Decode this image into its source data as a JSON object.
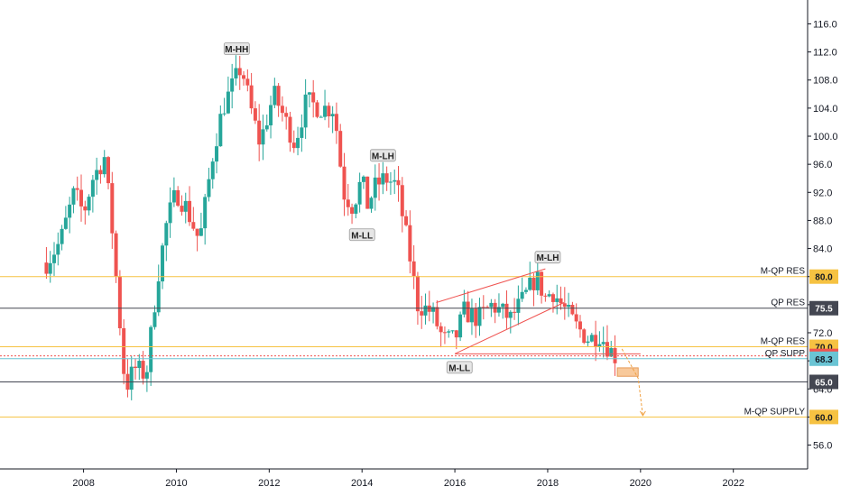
{
  "chart_data": {
    "type": "candlestick",
    "title": "",
    "xlabel": "",
    "ylabel": "",
    "x_range": [
      2006.2,
      2023.6
    ],
    "ylim": [
      52.6,
      119.4
    ],
    "x_ticks": [
      "2008",
      "2010",
      "2012",
      "2014",
      "2016",
      "2018",
      "2020",
      "2022"
    ],
    "y_ticks": [
      "56.0",
      "60.0",
      "64.0",
      "68.0",
      "72.0",
      "76.0",
      "80.0",
      "84.0",
      "88.0",
      "92.0",
      "96.0",
      "100.0",
      "104.0",
      "108.0",
      "112.0",
      "116.0"
    ],
    "grid": false,
    "up_color": "#26a69a",
    "down_color": "#ef5350",
    "path_points": [
      [
        2007.2,
        82
      ],
      [
        2007.5,
        85
      ],
      [
        2007.8,
        92
      ],
      [
        2008.0,
        89
      ],
      [
        2008.2,
        94
      ],
      [
        2008.45,
        97
      ],
      [
        2008.6,
        88
      ],
      [
        2008.75,
        76
      ],
      [
        2008.9,
        64
      ],
      [
        2009.1,
        67
      ],
      [
        2009.35,
        66
      ],
      [
        2009.6,
        80
      ],
      [
        2009.8,
        88
      ],
      [
        2010.0,
        92
      ],
      [
        2010.2,
        90
      ],
      [
        2010.5,
        85
      ],
      [
        2010.8,
        98
      ],
      [
        2011.0,
        104
      ],
      [
        2011.2,
        107
      ],
      [
        2011.4,
        110
      ],
      [
        2011.6,
        104
      ],
      [
        2011.8,
        99
      ],
      [
        2012.1,
        106
      ],
      [
        2012.3,
        103
      ],
      [
        2012.55,
        99
      ],
      [
        2012.8,
        105
      ],
      [
        2013.1,
        104
      ],
      [
        2013.4,
        104
      ],
      [
        2013.6,
        92
      ],
      [
        2013.8,
        90
      ],
      [
        2014.0,
        94
      ],
      [
        2014.1,
        90
      ],
      [
        2014.3,
        93
      ],
      [
        2014.5,
        94
      ],
      [
        2014.75,
        93
      ],
      [
        2015.0,
        84
      ],
      [
        2015.2,
        76
      ],
      [
        2015.5,
        75
      ],
      [
        2015.75,
        71
      ],
      [
        2016.0,
        71
      ],
      [
        2016.2,
        75
      ],
      [
        2016.5,
        74
      ],
      [
        2016.8,
        76
      ],
      [
        2017.2,
        74
      ],
      [
        2017.5,
        77
      ],
      [
        2017.75,
        80
      ],
      [
        2017.95,
        77
      ],
      [
        2018.1,
        78
      ],
      [
        2018.3,
        76
      ],
      [
        2018.6,
        73
      ],
      [
        2018.9,
        71
      ],
      [
        2019.1,
        72
      ],
      [
        2019.35,
        69.5
      ],
      [
        2019.45,
        68.7
      ]
    ],
    "horizontal_levels": [
      {
        "label": "M-QP RES",
        "value": "80.0",
        "color": "#f6c242"
      },
      {
        "label": "QP RES",
        "value": "75.5",
        "color": "#434651"
      },
      {
        "label": "M-QP RES",
        "value": "70.0",
        "color": "#f6c242"
      },
      {
        "label": "",
        "value": "68.7",
        "color": "#ef5350"
      },
      {
        "label": "QP SUPP",
        "value": "68.3",
        "color": "#6ac4d4"
      },
      {
        "label": "",
        "value": "65.0",
        "color": "#434651"
      },
      {
        "label": "M-QP  SUPPLY",
        "value": "60.0",
        "color": "#f6c242"
      }
    ],
    "annotations": [
      {
        "text": "M-HH",
        "x": 2011.3,
        "y": 112.4
      },
      {
        "text": "M-LH",
        "x": 2014.45,
        "y": 97.2
      },
      {
        "text": "M-LL",
        "x": 2014.0,
        "y": 85.9
      },
      {
        "text": "M-LH",
        "x": 2018.0,
        "y": 82.7
      },
      {
        "text": "M-LL",
        "x": 2016.1,
        "y": 67.0
      }
    ],
    "trendlines": [
      {
        "from": [
          2015.6,
          76.3
        ],
        "to": [
          2017.95,
          81.1
        ]
      },
      {
        "from": [
          2016.0,
          69.0
        ],
        "to": [
          2018.35,
          76.3
        ]
      },
      {
        "from": [
          2016.0,
          69.0
        ],
        "to": [
          2020.0,
          69.0
        ]
      }
    ],
    "projection": {
      "points": [
        [
          2019.6,
          69.7
        ],
        [
          2019.95,
          65.5
        ],
        [
          2020.05,
          60.2
        ]
      ],
      "zone": [
        2019.5,
        2019.95,
        65.8,
        67.0
      ]
    }
  }
}
